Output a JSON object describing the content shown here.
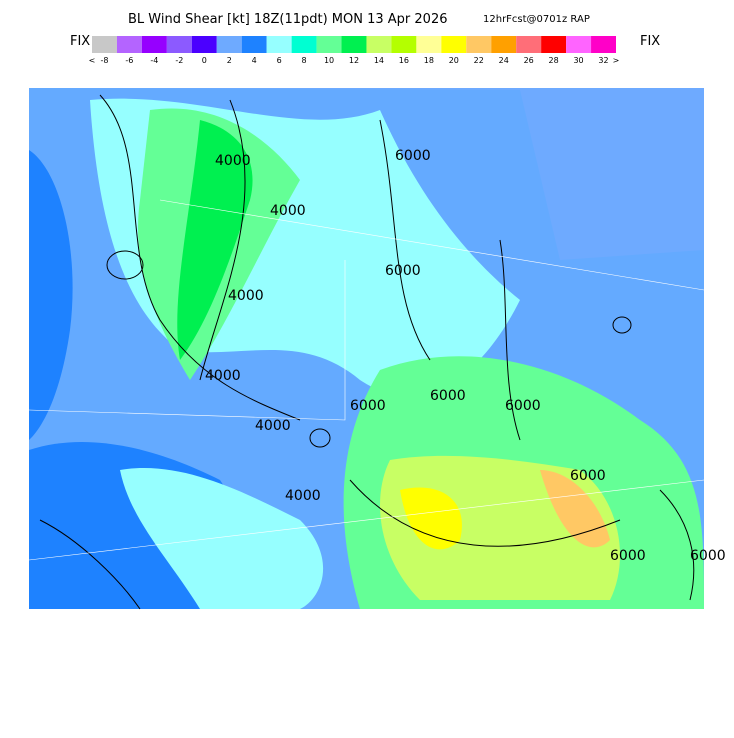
{
  "header": {
    "title": "BL Wind Shear [kt] 18Z(11pdt) MON 13 Apr 2026",
    "forecast": "12hrFcst@0701z RAP",
    "fix_left": "FIX",
    "fix_right": "FIX"
  },
  "legend": {
    "labels": [
      "<",
      "-8",
      "-6",
      "-4",
      "-2",
      "0",
      "2",
      "4",
      "6",
      "8",
      "10",
      "12",
      "14",
      "16",
      "18",
      "20",
      "22",
      "24",
      "26",
      "28",
      "30",
      "32",
      ">"
    ],
    "colors": [
      "#c8c8c8",
      "#b464ff",
      "#9600ff",
      "#8c5aff",
      "#4b00ff",
      "#6eaaff",
      "#1e82ff",
      "#96ffff",
      "#00ffd2",
      "#64ff96",
      "#00f050",
      "#c8ff64",
      "#b4ff00",
      "#ffff96",
      "#ffff00",
      "#ffc864",
      "#ffa000",
      "#ff6e78",
      "#ff0000",
      "#ff64ff",
      "#ff00c8"
    ]
  },
  "map": {
    "contour_labels": [
      "4000",
      "4000",
      "4000",
      "6000",
      "4000",
      "4000",
      "6000",
      "6000",
      "4000",
      "6000",
      "6000",
      "6000",
      "6000",
      "6000"
    ]
  }
}
